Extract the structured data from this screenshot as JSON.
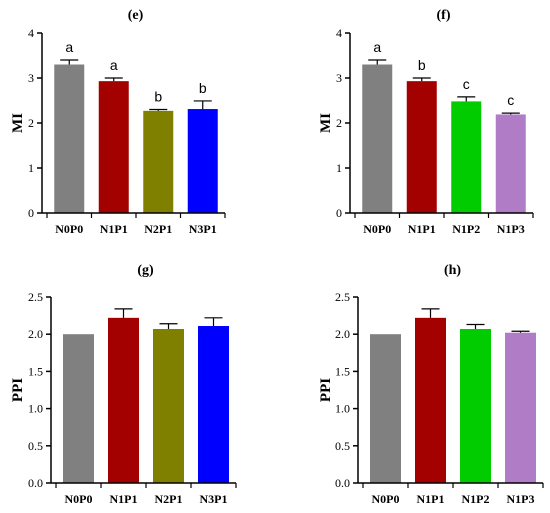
{
  "chart_data": [
    {
      "type": "bar",
      "title": "(e)",
      "ylabel": "MI",
      "xlabel": "",
      "ylim": [
        0,
        4
      ],
      "yticks": [
        "0",
        "1",
        "2",
        "3",
        "4"
      ],
      "categories": [
        "N0P0",
        "N1P1",
        "N2P1",
        "N3P1"
      ],
      "values": [
        3.3,
        2.93,
        2.27,
        2.31
      ],
      "errors": [
        0.1,
        0.07,
        0.03,
        0.18
      ],
      "letters": [
        "a",
        "a",
        "b",
        "b"
      ],
      "colors": [
        "#808080",
        "#a30000",
        "#808000",
        "#0000ff"
      ]
    },
    {
      "type": "bar",
      "title": "(f)",
      "ylabel": "MI",
      "xlabel": "",
      "ylim": [
        0,
        4
      ],
      "yticks": [
        "0",
        "1",
        "2",
        "3",
        "4"
      ],
      "categories": [
        "N0P0",
        "N1P1",
        "N1P2",
        "N1P3"
      ],
      "values": [
        3.3,
        2.93,
        2.48,
        2.19
      ],
      "errors": [
        0.1,
        0.07,
        0.1,
        0.03
      ],
      "letters": [
        "a",
        "b",
        "c",
        "c"
      ],
      "colors": [
        "#808080",
        "#a30000",
        "#00cc00",
        "#b07cc6"
      ]
    },
    {
      "type": "bar",
      "title": "(g)",
      "ylabel": "PPI",
      "xlabel": "",
      "ylim": [
        0,
        2.5
      ],
      "yticks": [
        "0.0",
        "0.5",
        "1.0",
        "1.5",
        "2.0",
        "2.5"
      ],
      "categories": [
        "N0P0",
        "N1P1",
        "N2P1",
        "N3P1"
      ],
      "values": [
        2.0,
        2.22,
        2.07,
        2.11
      ],
      "errors": [
        0,
        0.12,
        0.07,
        0.11
      ],
      "letters": [
        "",
        "",
        "",
        ""
      ],
      "colors": [
        "#808080",
        "#a30000",
        "#808000",
        "#0000ff"
      ]
    },
    {
      "type": "bar",
      "title": "(h)",
      "ylabel": "PPI",
      "xlabel": "",
      "ylim": [
        0,
        2.5
      ],
      "yticks": [
        "0.0",
        "0.5",
        "1.0",
        "1.5",
        "2.0",
        "2.5"
      ],
      "categories": [
        "N0P0",
        "N1P1",
        "N1P2",
        "N1P3"
      ],
      "values": [
        2.0,
        2.22,
        2.07,
        2.02
      ],
      "errors": [
        0,
        0.12,
        0.06,
        0.02
      ],
      "letters": [
        "",
        "",
        "",
        ""
      ],
      "colors": [
        "#808080",
        "#a30000",
        "#00cc00",
        "#b07cc6"
      ]
    }
  ]
}
